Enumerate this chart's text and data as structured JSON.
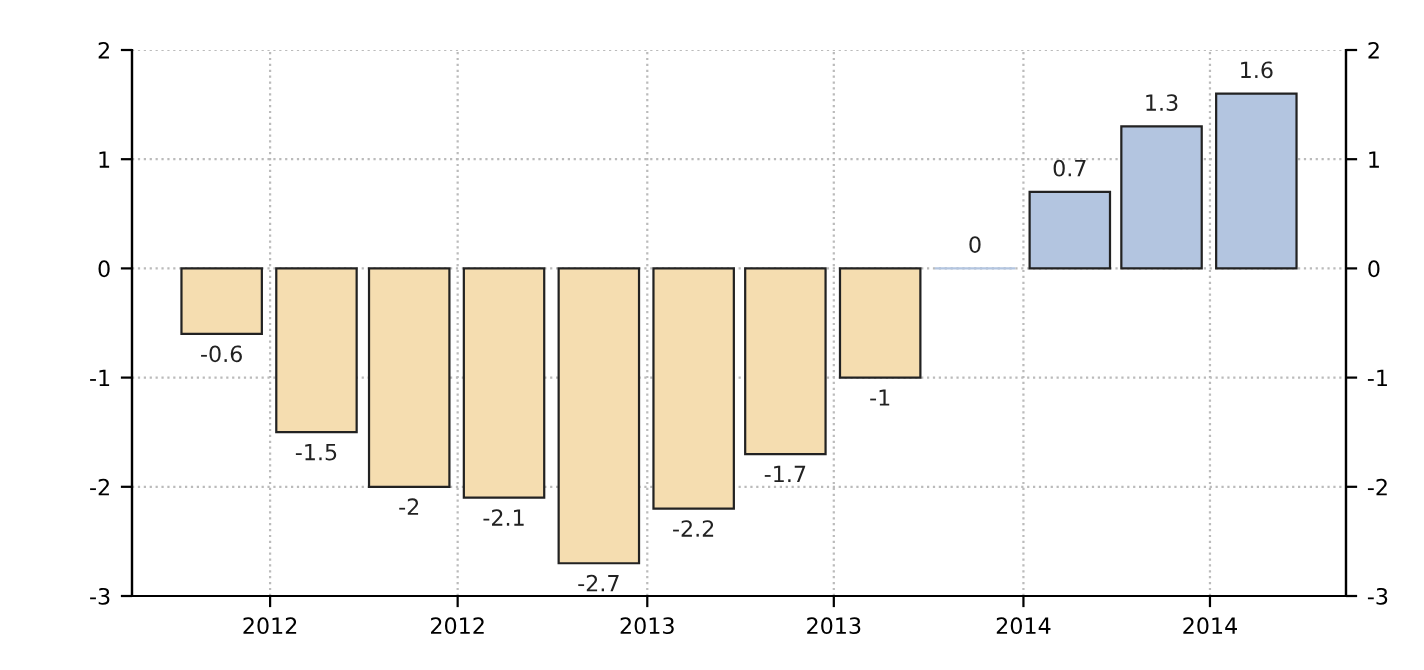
{
  "chart_data": {
    "type": "bar",
    "x": [
      "2011-11-15",
      "2012-02-15",
      "2012-05-15",
      "2012-08-15",
      "2012-11-15",
      "2013-02-15",
      "2013-05-15",
      "2013-08-15",
      "2013-11-15",
      "2014-02-15",
      "2014-05-15",
      "2014-08-15"
    ],
    "values": [
      -0.6,
      -1.5,
      -2,
      -2.1,
      -2.7,
      -2.2,
      -1.7,
      -1,
      0,
      0.7,
      1.3,
      1.6
    ],
    "colors": [
      "#f5ddb0",
      "#f5ddb0",
      "#f5ddb0",
      "#f5ddb0",
      "#f5ddb0",
      "#f5ddb0",
      "#f5ddb0",
      "#f5ddb0",
      "#b3c5e0",
      "#b3c5e0",
      "#b3c5e0",
      "#b3c5e0"
    ],
    "xlim": [
      "2011-08-20",
      "2014-11-10"
    ],
    "xticks": [
      {
        "value": "2012-01-01",
        "label": "2012"
      },
      {
        "value": "2012-07-01",
        "label": "2012"
      },
      {
        "value": "2013-01-01",
        "label": "2013"
      },
      {
        "value": "2013-07-01",
        "label": "2013"
      },
      {
        "value": "2014-01-01",
        "label": "2014"
      },
      {
        "value": "2014-07-01",
        "label": "2014"
      }
    ],
    "ylim": [
      -3,
      2
    ],
    "yticks": [
      -3,
      -2,
      -1,
      0,
      1,
      2
    ],
    "y2lim": [
      -3,
      2
    ],
    "y2ticks": [
      -3,
      -2,
      -1,
      0,
      1,
      2
    ],
    "data_labels": true,
    "grid": true,
    "legend": false
  }
}
